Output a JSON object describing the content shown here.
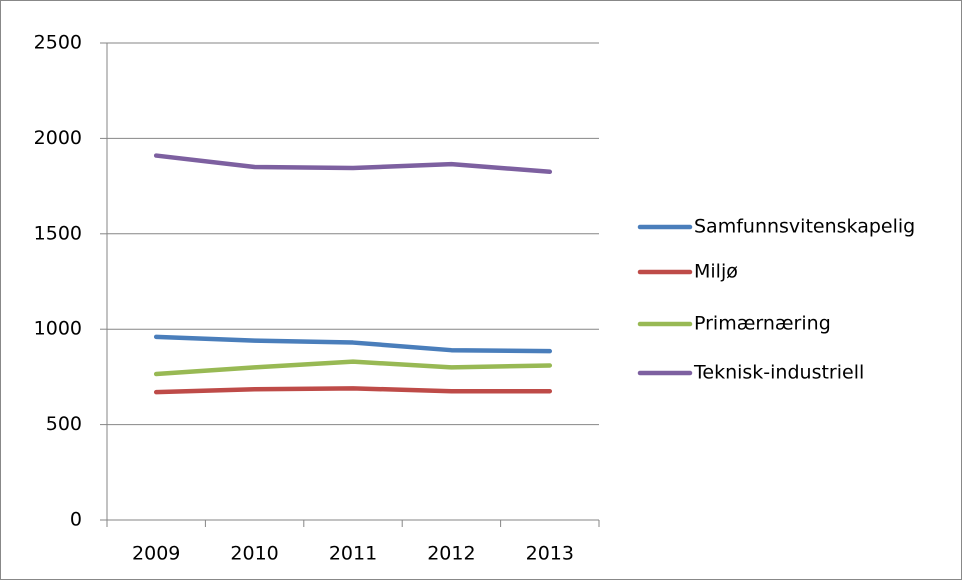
{
  "chart_data": {
    "type": "line",
    "categories": [
      "2009",
      "2010",
      "2011",
      "2012",
      "2013"
    ],
    "series": [
      {
        "name": "Samfunnsvitenskapelig",
        "color": "#4a7ebb",
        "values": [
          960,
          940,
          930,
          890,
          885
        ]
      },
      {
        "name": "Miljø",
        "color": "#be4b48",
        "values": [
          670,
          685,
          690,
          675,
          675
        ]
      },
      {
        "name": "Primærnæring",
        "color": "#98b954",
        "values": [
          765,
          800,
          830,
          800,
          810
        ]
      },
      {
        "name": "Teknisk-industriell",
        "color": "#7d60a0",
        "values": [
          1910,
          1850,
          1845,
          1865,
          1825
        ]
      }
    ],
    "ylim": [
      0,
      2500
    ],
    "yticks": [
      0,
      500,
      1000,
      1500,
      2000,
      2500
    ],
    "grid": true,
    "legend": "right"
  }
}
